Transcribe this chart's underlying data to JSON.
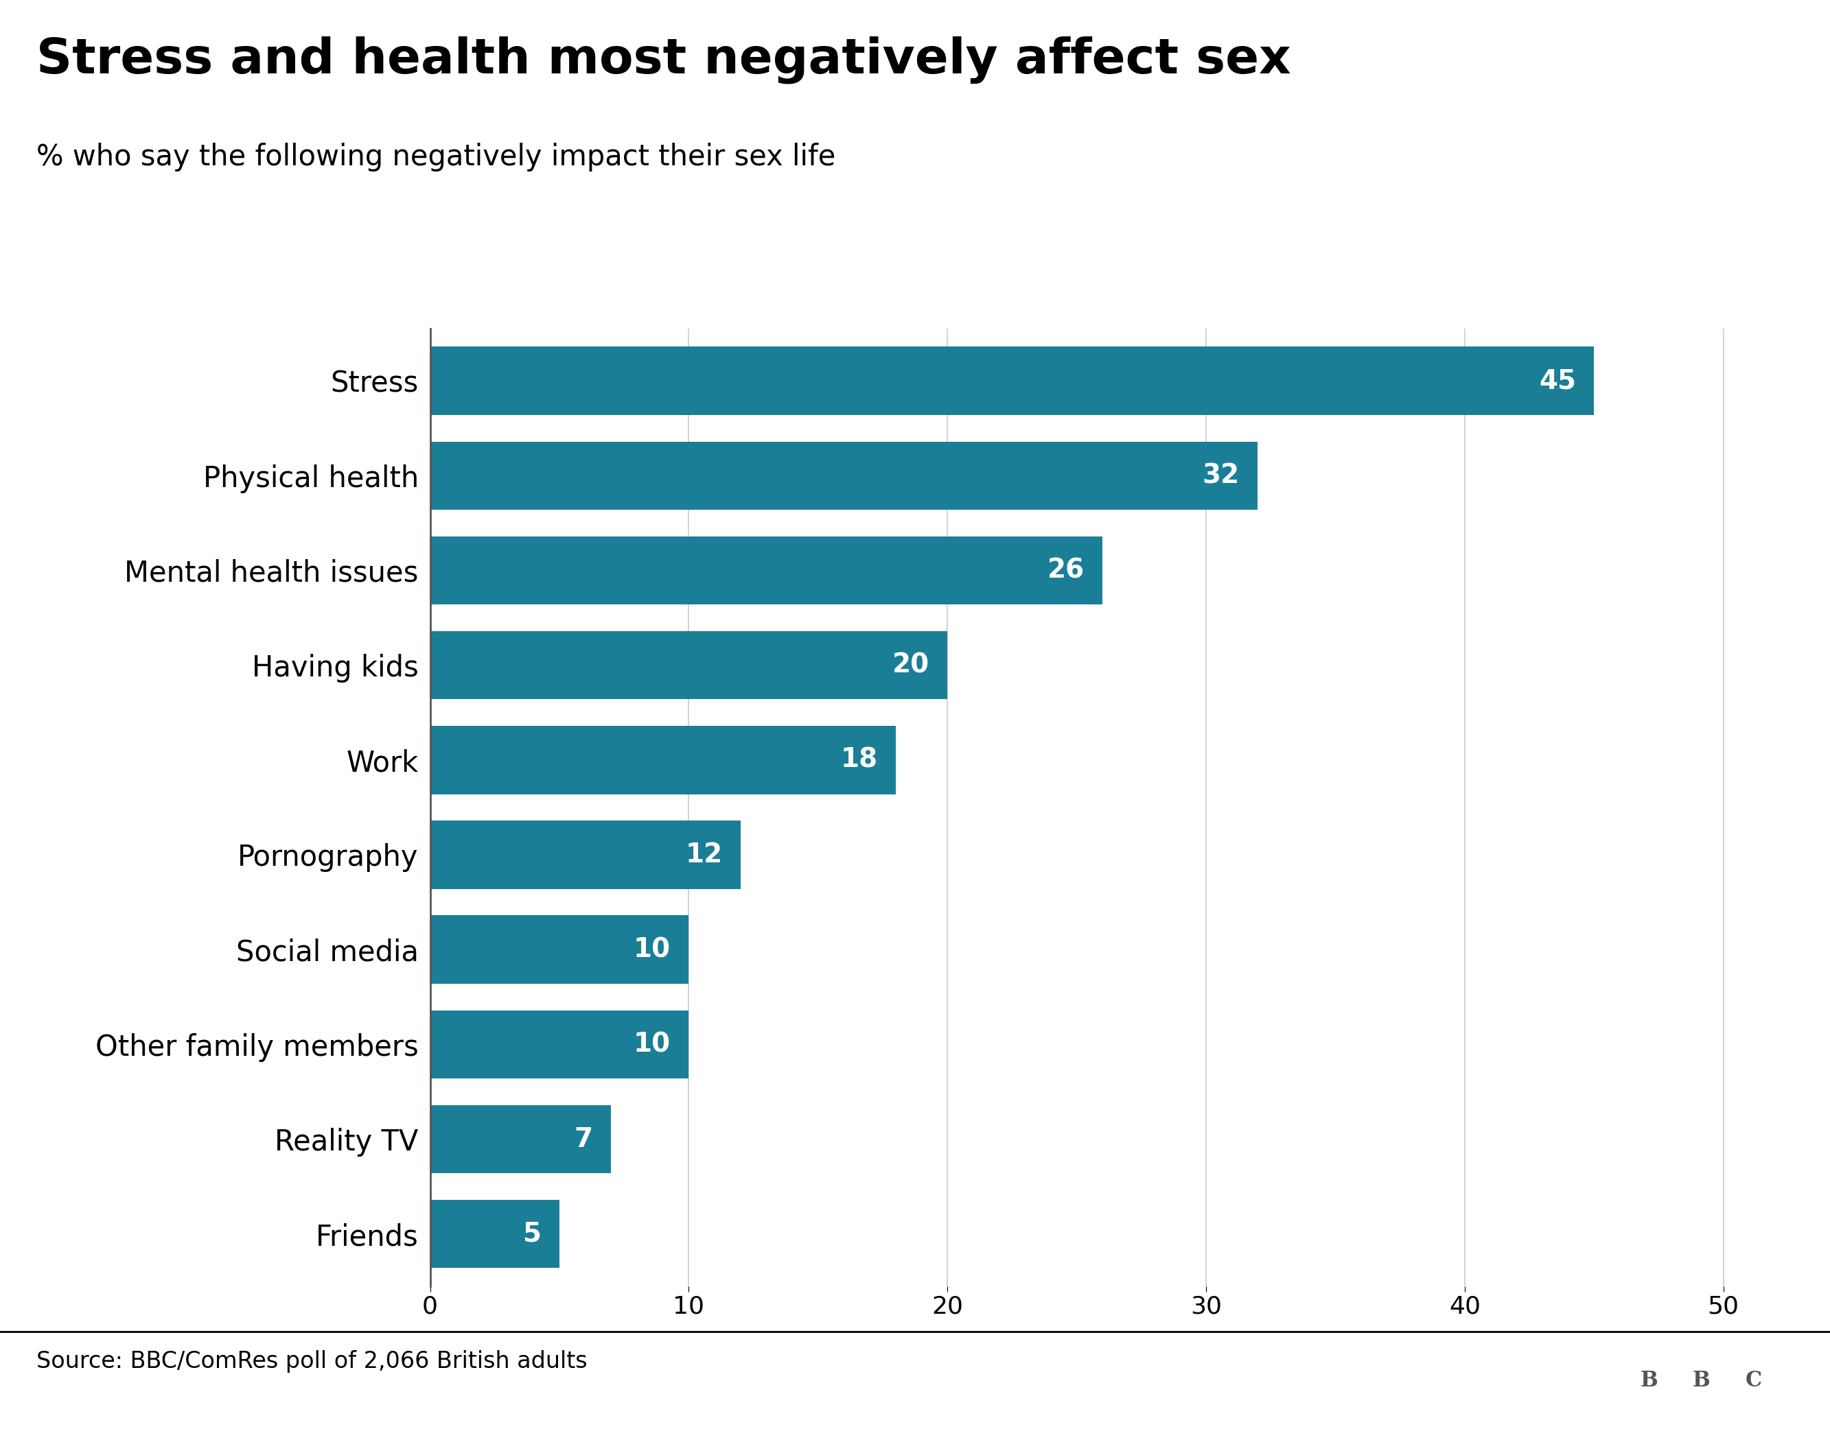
{
  "title": "Stress and health most negatively affect sex",
  "subtitle": "% who say the following negatively impact their sex life",
  "source": "Source: BBC/ComRes poll of 2,066 British adults",
  "categories": [
    "Stress",
    "Physical health",
    "Mental health issues",
    "Having kids",
    "Work",
    "Pornography",
    "Social media",
    "Other family members",
    "Reality TV",
    "Friends"
  ],
  "values": [
    45,
    32,
    26,
    20,
    18,
    12,
    10,
    10,
    7,
    5
  ],
  "bar_color": "#1a7f96",
  "value_label_color": "#ffffff",
  "background_color": "#ffffff",
  "title_color": "#000000",
  "subtitle_color": "#000000",
  "source_color": "#000000",
  "xlim": [
    0,
    52
  ],
  "xticks": [
    0,
    10,
    20,
    30,
    40,
    50
  ],
  "title_fontsize": 52,
  "subtitle_fontsize": 30,
  "source_fontsize": 24,
  "label_fontsize": 30,
  "value_fontsize": 28,
  "tick_fontsize": 26,
  "bar_height": 0.72,
  "grid_color": "#cccccc",
  "axis_color": "#333333",
  "bbc_logo_text": "BBC",
  "footer_line_color": "#000000"
}
